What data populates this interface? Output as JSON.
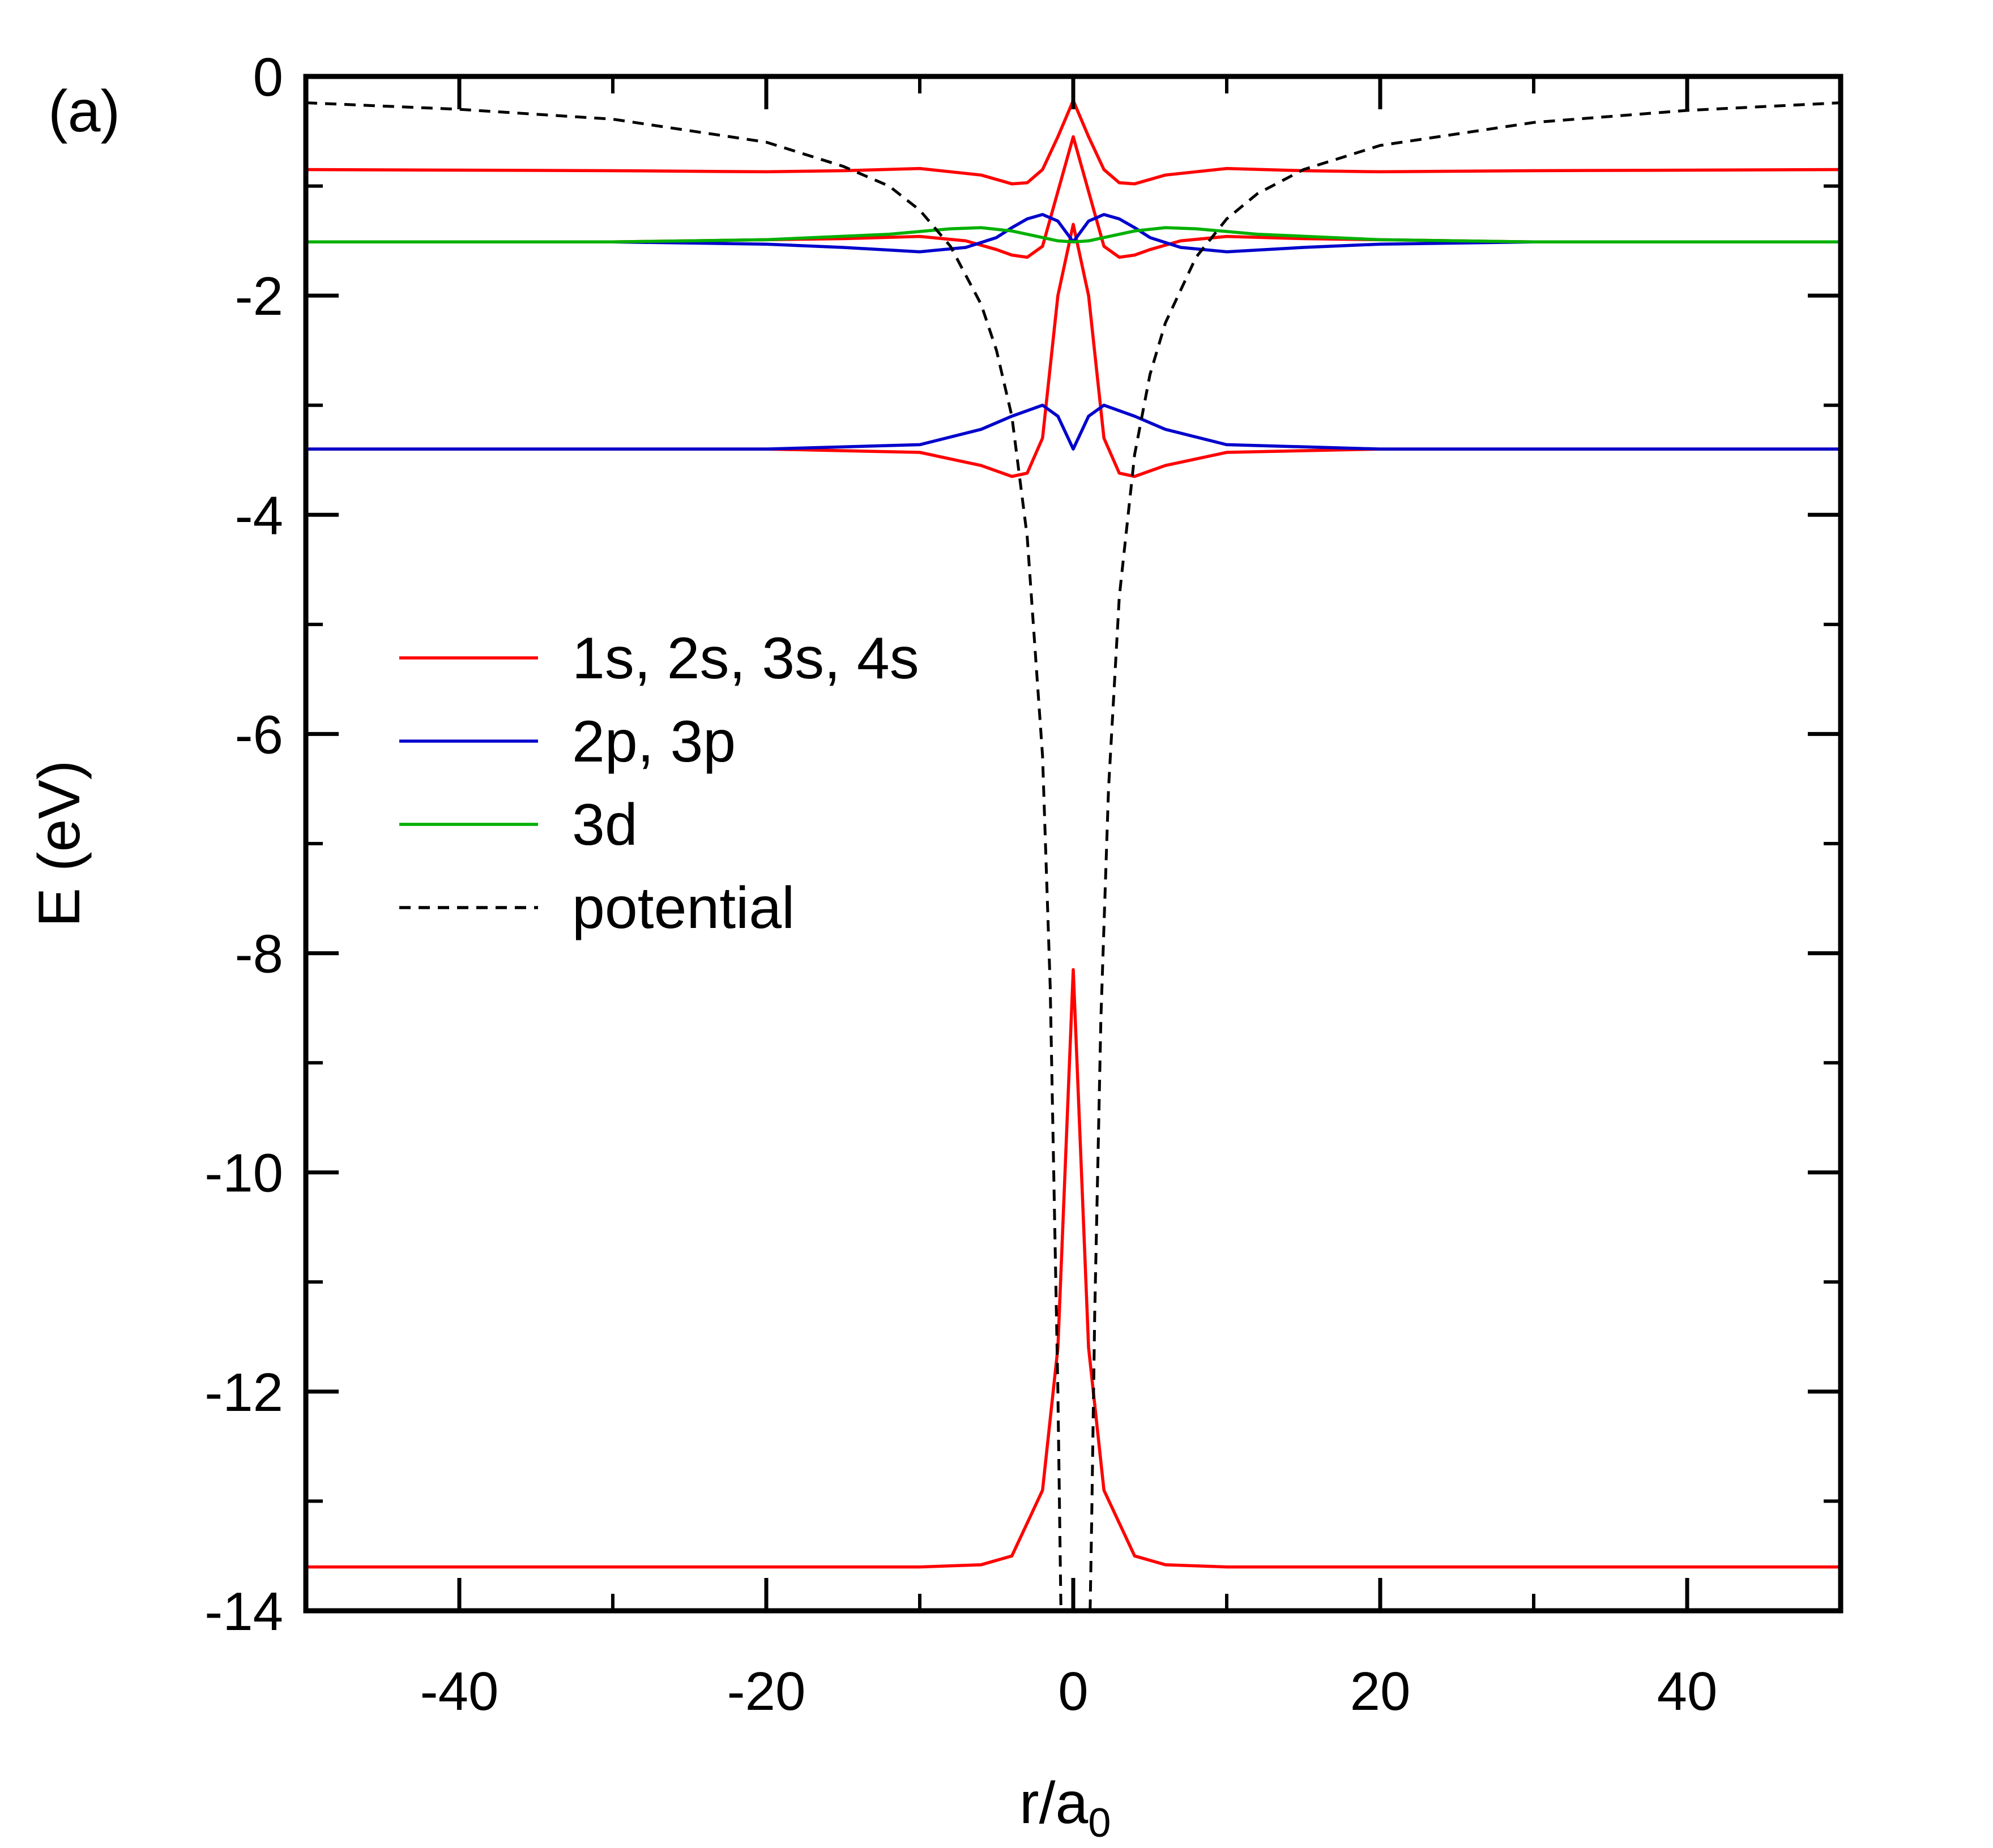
{
  "chart_data": {
    "type": "line",
    "panel_label": "(a)",
    "xlabel": "r/a",
    "xlabel_sub": "0",
    "ylabel": "E (eV)",
    "xlim": [
      -50,
      50
    ],
    "ylim": [
      -14,
      0
    ],
    "xticks": [
      -40,
      -20,
      0,
      20,
      40
    ],
    "xtick_labels": [
      "-40",
      "-20",
      "0",
      "20",
      "40"
    ],
    "yticks": [
      0,
      -2,
      -4,
      -6,
      -8,
      -10,
      -12,
      -14
    ],
    "ytick_labels": [
      "0",
      "-2",
      "-4",
      "-6",
      "-8",
      "-10",
      "-12",
      "-14"
    ],
    "grid": false,
    "legend_placement": "center-left",
    "legend": [
      {
        "label": "1s, 2s, 3s, 4s",
        "color": "#ff0000",
        "style": "solid"
      },
      {
        "label": "2p, 3p",
        "color": "#0000cc",
        "style": "solid"
      },
      {
        "label": "3d",
        "color": "#00b000",
        "style": "solid"
      },
      {
        "label": "potential",
        "color": "#000000",
        "style": "dashed"
      }
    ],
    "series": [
      {
        "group": "s",
        "color": "#ff0000",
        "style": "solid",
        "x": [
          -50,
          -10,
          -6,
          -4,
          -2,
          -1,
          0,
          1,
          2,
          4,
          6,
          10,
          50
        ],
        "y": [
          -13.6,
          -13.6,
          -13.58,
          -13.5,
          -12.9,
          -11.6,
          -8.15,
          -11.6,
          -12.9,
          -13.5,
          -13.58,
          -13.6,
          -13.6
        ]
      },
      {
        "group": "s",
        "color": "#ff0000",
        "style": "solid",
        "x": [
          -50,
          -20,
          -10,
          -6,
          -4,
          -3,
          -2,
          -1,
          0,
          1,
          2,
          3,
          4,
          6,
          10,
          20,
          50
        ],
        "y": [
          -3.4,
          -3.4,
          -3.43,
          -3.55,
          -3.65,
          -3.62,
          -3.3,
          -2.0,
          -1.35,
          -2.0,
          -3.3,
          -3.62,
          -3.65,
          -3.55,
          -3.43,
          -3.4,
          -3.4
        ]
      },
      {
        "group": "s",
        "color": "#ff0000",
        "style": "solid",
        "x": [
          -50,
          -30,
          -15,
          -10,
          -7,
          -5,
          -4,
          -3,
          -2,
          -1,
          0,
          1,
          2,
          3,
          4,
          5,
          7,
          10,
          15,
          30,
          50
        ],
        "y": [
          -1.51,
          -1.51,
          -1.48,
          -1.46,
          -1.5,
          -1.58,
          -1.63,
          -1.65,
          -1.55,
          -1.05,
          -0.55,
          -1.05,
          -1.55,
          -1.65,
          -1.63,
          -1.58,
          -1.5,
          -1.46,
          -1.48,
          -1.51,
          -1.51
        ]
      },
      {
        "group": "s",
        "color": "#ff0000",
        "style": "solid",
        "x": [
          -50,
          -30,
          -20,
          -15,
          -10,
          -6,
          -4,
          -3,
          -2,
          -1,
          0,
          1,
          2,
          3,
          4,
          6,
          10,
          15,
          20,
          30,
          50
        ],
        "y": [
          -0.85,
          -0.86,
          -0.87,
          -0.86,
          -0.84,
          -0.9,
          -0.98,
          -0.97,
          -0.85,
          -0.55,
          -0.22,
          -0.55,
          -0.85,
          -0.97,
          -0.98,
          -0.9,
          -0.84,
          -0.86,
          -0.87,
          -0.86,
          -0.85
        ]
      },
      {
        "group": "p",
        "color": "#0000cc",
        "style": "solid",
        "x": [
          -50,
          -20,
          -10,
          -6,
          -4,
          -2,
          -1,
          0,
          1,
          2,
          4,
          6,
          10,
          20,
          50
        ],
        "y": [
          -3.4,
          -3.4,
          -3.36,
          -3.22,
          -3.1,
          -3.0,
          -3.1,
          -3.4,
          -3.1,
          -3.0,
          -3.1,
          -3.22,
          -3.36,
          -3.4,
          -3.4
        ]
      },
      {
        "group": "p",
        "color": "#0000cc",
        "style": "solid",
        "x": [
          -50,
          -30,
          -20,
          -15,
          -10,
          -7,
          -5,
          -4,
          -3,
          -2,
          -1,
          0,
          1,
          2,
          3,
          4,
          5,
          7,
          10,
          15,
          20,
          30,
          50
        ],
        "y": [
          -1.51,
          -1.51,
          -1.53,
          -1.56,
          -1.6,
          -1.56,
          -1.47,
          -1.38,
          -1.3,
          -1.26,
          -1.32,
          -1.51,
          -1.32,
          -1.26,
          -1.3,
          -1.38,
          -1.47,
          -1.56,
          -1.6,
          -1.56,
          -1.53,
          -1.51,
          -1.51
        ]
      },
      {
        "group": "d",
        "color": "#00b000",
        "style": "solid",
        "x": [
          -50,
          -30,
          -20,
          -12,
          -8,
          -6,
          -4,
          -2,
          -1,
          0,
          1,
          2,
          4,
          6,
          8,
          12,
          20,
          30,
          50
        ],
        "y": [
          -1.51,
          -1.51,
          -1.49,
          -1.44,
          -1.39,
          -1.38,
          -1.41,
          -1.47,
          -1.5,
          -1.51,
          -1.5,
          -1.47,
          -1.41,
          -1.38,
          -1.39,
          -1.44,
          -1.49,
          -1.51,
          -1.51
        ]
      },
      {
        "group": "potential",
        "color": "#000000",
        "style": "dashed",
        "x": [
          -50,
          -40,
          -30,
          -20,
          -15,
          -12,
          -10,
          -8,
          -6,
          -5,
          -4,
          -3,
          -2,
          -1.5,
          -1,
          -0.8,
          -0.6,
          -0.5
        ],
        "y": [
          -0.24,
          -0.3,
          -0.39,
          -0.6,
          -0.82,
          -1.0,
          -1.22,
          -1.55,
          -2.08,
          -2.5,
          -3.1,
          -4.2,
          -6.2,
          -8.3,
          -12.0,
          -14.0,
          -14.0,
          -14.0
        ]
      },
      {
        "group": "potential",
        "color": "#000000",
        "style": "dashed",
        "x": [
          1.1,
          1.2,
          1.4,
          1.8,
          2.3,
          3,
          4,
          5,
          6,
          8,
          10,
          12,
          15,
          20,
          30,
          40,
          50
        ],
        "y": [
          -14.0,
          -13.2,
          -11.3,
          -8.6,
          -6.5,
          -4.75,
          -3.45,
          -2.72,
          -2.25,
          -1.65,
          -1.3,
          -1.07,
          -0.85,
          -0.63,
          -0.42,
          -0.31,
          -0.24
        ]
      }
    ]
  }
}
